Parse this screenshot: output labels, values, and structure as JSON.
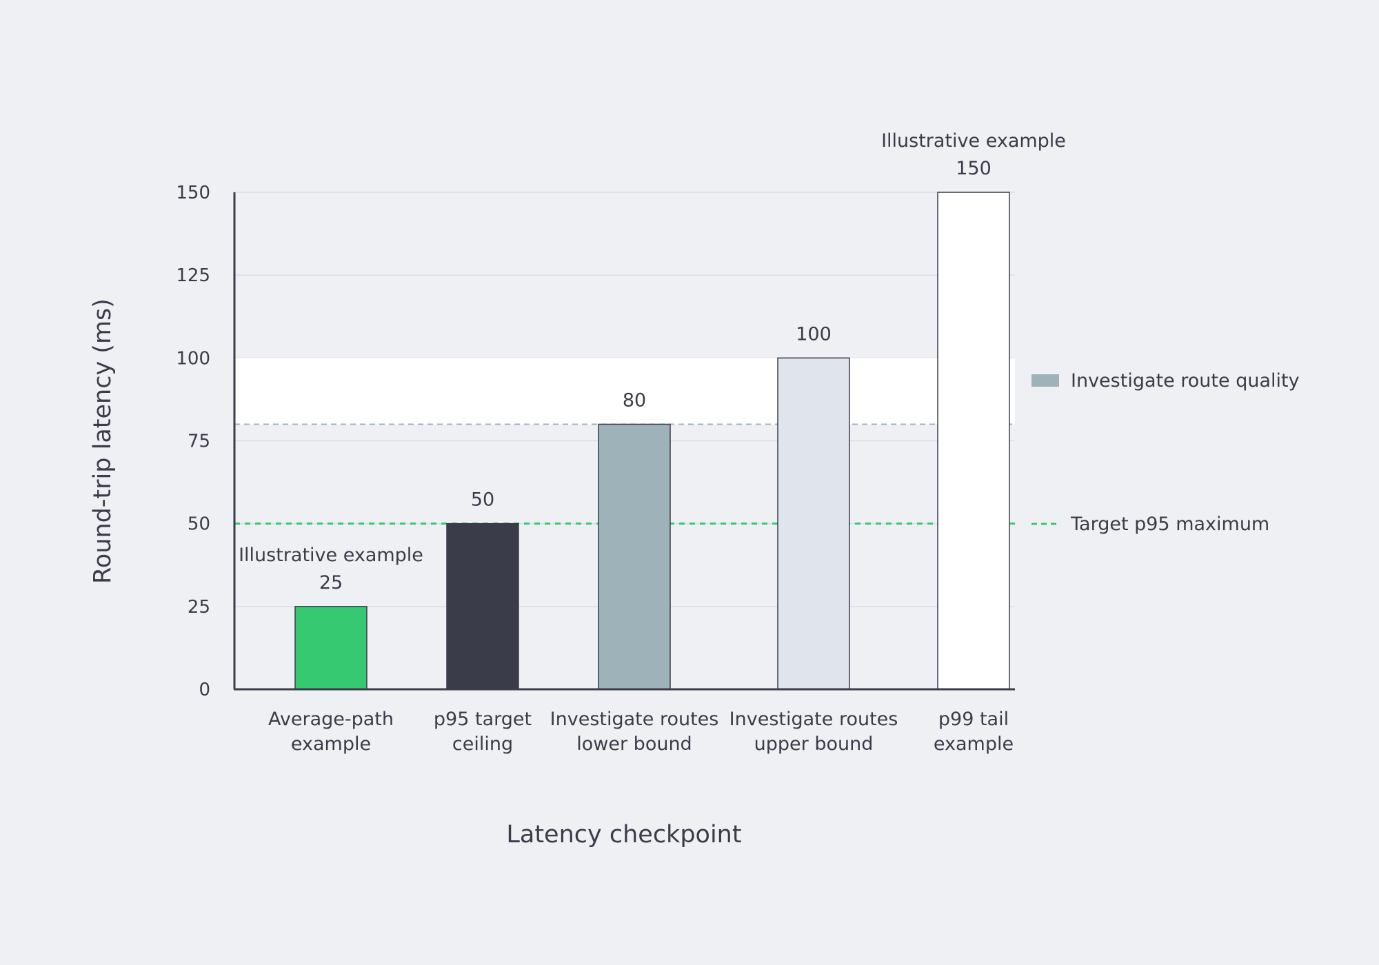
{
  "chart_data": {
    "type": "bar",
    "title": "",
    "xlabel": "Latency checkpoint",
    "ylabel": "Round-trip latency (ms)",
    "ylim": [
      0,
      150
    ],
    "yticks": [
      0,
      25,
      50,
      75,
      100,
      125,
      150
    ],
    "grid": true,
    "categories": [
      [
        "Average-path",
        "example"
      ],
      [
        "p95 target",
        "ceiling"
      ],
      [
        "Investigate routes",
        "lower bound"
      ],
      [
        "Investigate routes",
        "upper bound"
      ],
      [
        "p99 tail",
        "example"
      ]
    ],
    "values": [
      25,
      50,
      80,
      100,
      150
    ],
    "bar_colors": [
      "#36c972",
      "#3a3c4a",
      "#9db3b9",
      "#e0e4ec",
      "#ffffff"
    ],
    "annotations": [
      "Illustrative example",
      "",
      "",
      "",
      "Illustrative example"
    ],
    "band": {
      "from": 80,
      "to": 100,
      "label": "Investigate route quality",
      "color": "#ffffff",
      "legend_color": "#9db3b9",
      "edge_color": "#9fb0c2"
    },
    "reference_line": {
      "value": 50,
      "label": "Target p95 maximum",
      "color": "#36c972"
    },
    "legend_position": "right"
  }
}
